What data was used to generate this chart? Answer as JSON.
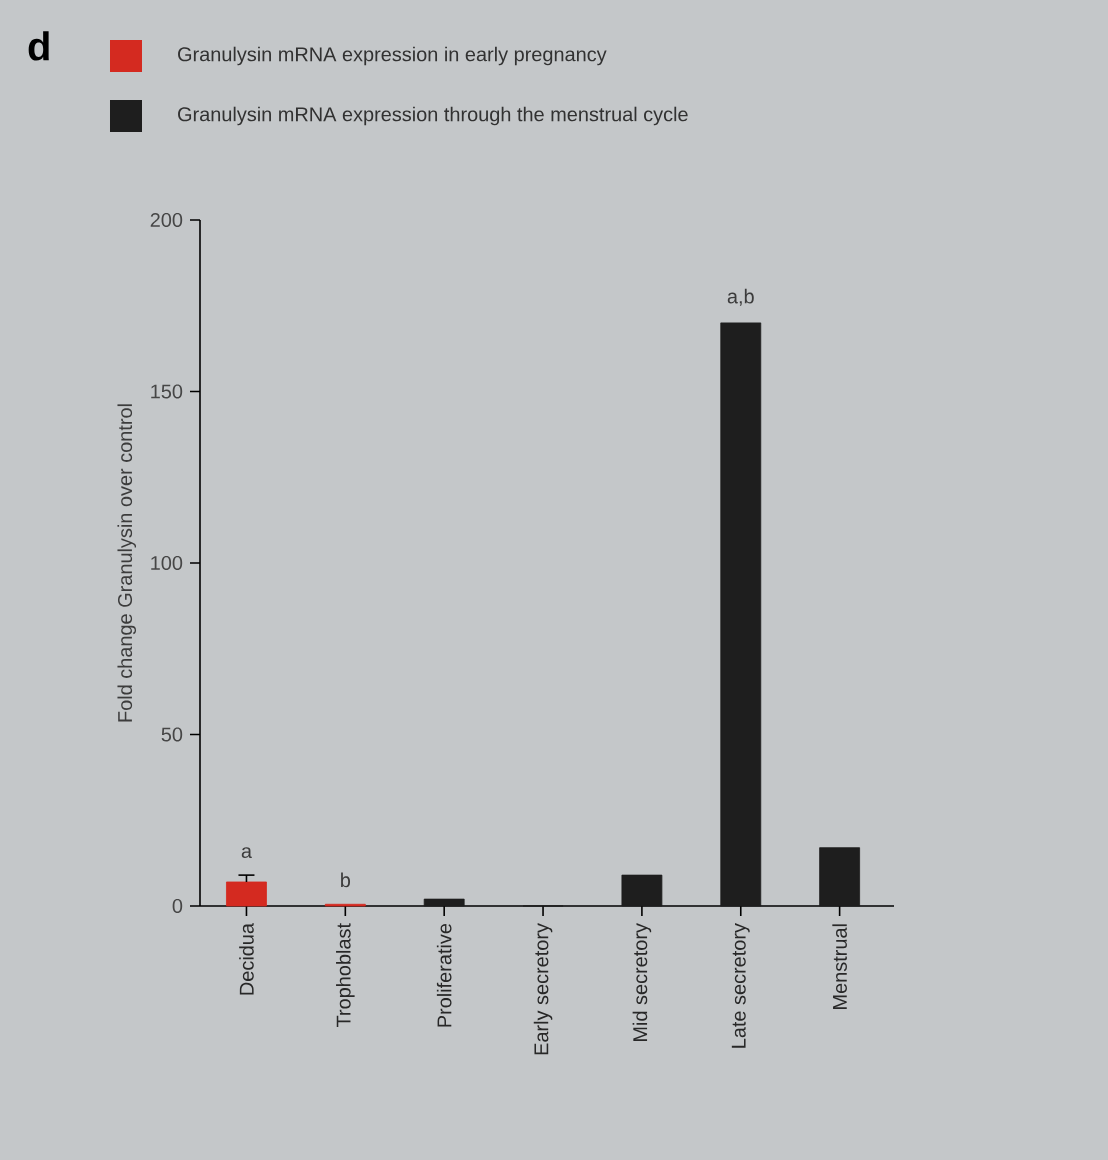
{
  "chart_data": {
    "type": "bar",
    "ylabel": "Fold change Granulysin over control",
    "categories": [
      "Decidua",
      "Trophoblast",
      "Proliferative",
      "Early secretory",
      "Mid secretory",
      "Late secretory",
      "Menstrual"
    ],
    "series": [
      {
        "name": "Granulysin mRNA expression in early pregnancy",
        "color": "#d42a20",
        "values": [
          7,
          0.5,
          null,
          null,
          null,
          null,
          null
        ],
        "errors": [
          2,
          null,
          null,
          null,
          null,
          null,
          null
        ]
      },
      {
        "name": "Granulysin mRNA expression through the menstrual cycle",
        "color": "#1e1e1e",
        "values": [
          null,
          null,
          2,
          0,
          9,
          170,
          17
        ]
      }
    ],
    "ylim": [
      0,
      200
    ],
    "yticks": [
      0,
      50,
      100,
      150,
      200
    ],
    "legend": "top",
    "annotations": [
      "d",
      {
        "text": "a",
        "x": "Decidua",
        "y": 9
      },
      {
        "text": "b",
        "x": "Trophoblast",
        "y": 0.5
      },
      {
        "text": "a,b",
        "x": "Late secretory",
        "y": 170
      }
    ]
  }
}
